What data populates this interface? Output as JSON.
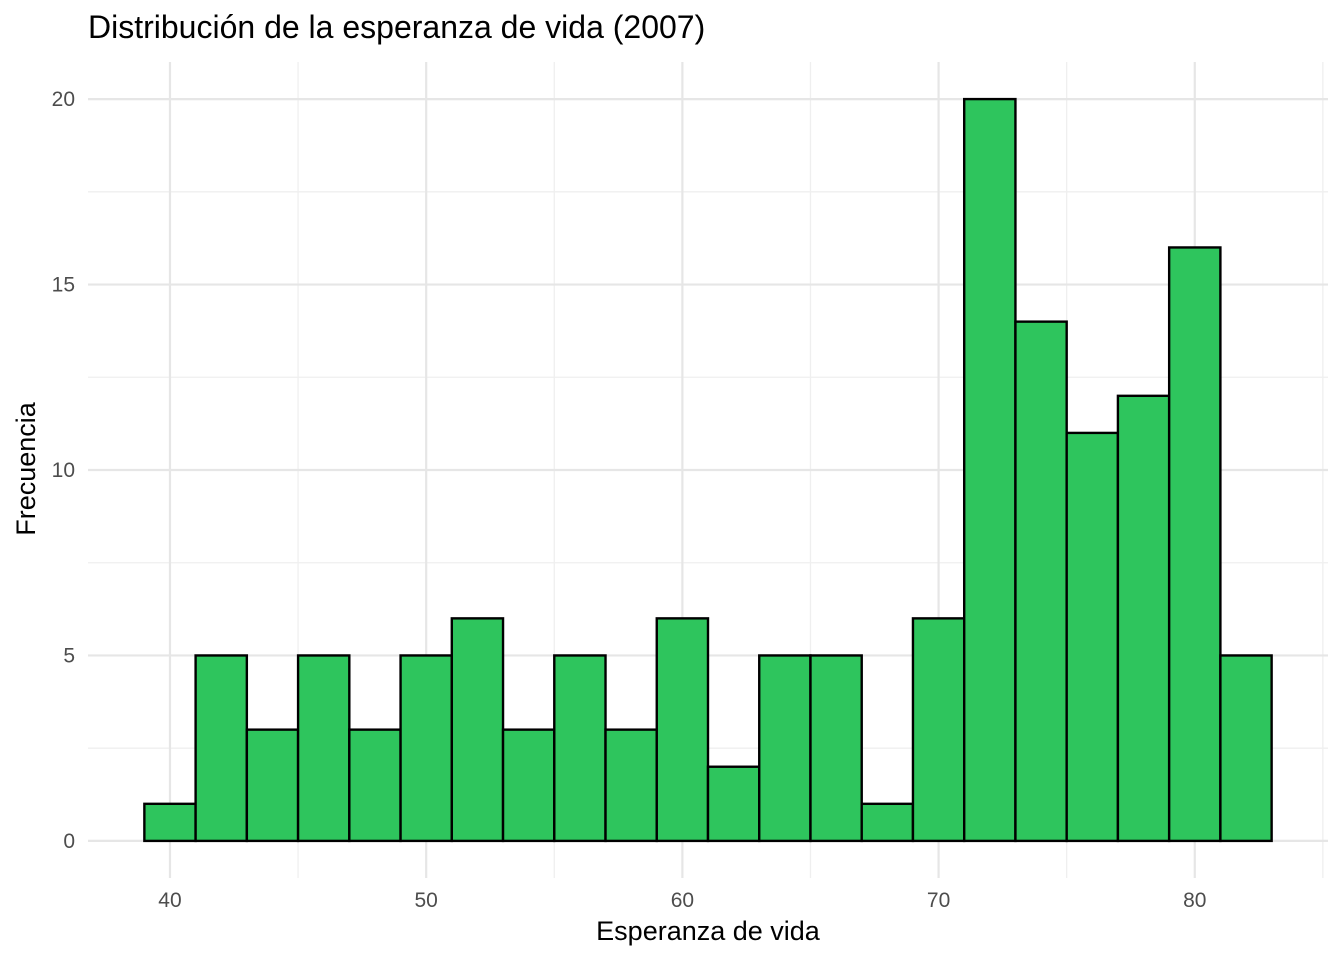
{
  "chart_data": {
    "type": "bar",
    "title": "Distribución de la esperanza de vida (2007)",
    "xlabel": "Esperanza de vida",
    "ylabel": "Frecuencia",
    "bin_width": 2,
    "bins": [
      {
        "x0": 39,
        "x1": 41,
        "count": 1
      },
      {
        "x0": 41,
        "x1": 43,
        "count": 5
      },
      {
        "x0": 43,
        "x1": 45,
        "count": 3
      },
      {
        "x0": 45,
        "x1": 47,
        "count": 5
      },
      {
        "x0": 47,
        "x1": 49,
        "count": 3
      },
      {
        "x0": 49,
        "x1": 51,
        "count": 5
      },
      {
        "x0": 51,
        "x1": 53,
        "count": 6
      },
      {
        "x0": 53,
        "x1": 55,
        "count": 3
      },
      {
        "x0": 55,
        "x1": 57,
        "count": 5
      },
      {
        "x0": 57,
        "x1": 59,
        "count": 3
      },
      {
        "x0": 59,
        "x1": 61,
        "count": 6
      },
      {
        "x0": 61,
        "x1": 63,
        "count": 2
      },
      {
        "x0": 63,
        "x1": 65,
        "count": 5
      },
      {
        "x0": 65,
        "x1": 67,
        "count": 5
      },
      {
        "x0": 67,
        "x1": 69,
        "count": 1
      },
      {
        "x0": 69,
        "x1": 71,
        "count": 6
      },
      {
        "x0": 71,
        "x1": 73,
        "count": 20
      },
      {
        "x0": 73,
        "x1": 75,
        "count": 14
      },
      {
        "x0": 75,
        "x1": 77,
        "count": 11
      },
      {
        "x0": 77,
        "x1": 79,
        "count": 12
      },
      {
        "x0": 79,
        "x1": 81,
        "count": 16
      },
      {
        "x0": 81,
        "x1": 83,
        "count": 5
      }
    ],
    "xlim": [
      36.8,
      85.2
    ],
    "ylim": [
      -1,
      21
    ],
    "x_ticks": [
      40,
      50,
      60,
      70,
      80
    ],
    "x_minor_ticks": [
      35,
      45,
      55,
      65,
      75,
      85
    ],
    "y_ticks": [
      0,
      5,
      10,
      15,
      20
    ],
    "y_minor_ticks": [
      2.5,
      7.5,
      12.5,
      17.5
    ],
    "grid": true,
    "legend": "none",
    "colors": {
      "bar_fill": "#2ec55d",
      "bar_outline": "#000000",
      "grid": "#e6e6e6",
      "background": "#ffffff"
    }
  }
}
